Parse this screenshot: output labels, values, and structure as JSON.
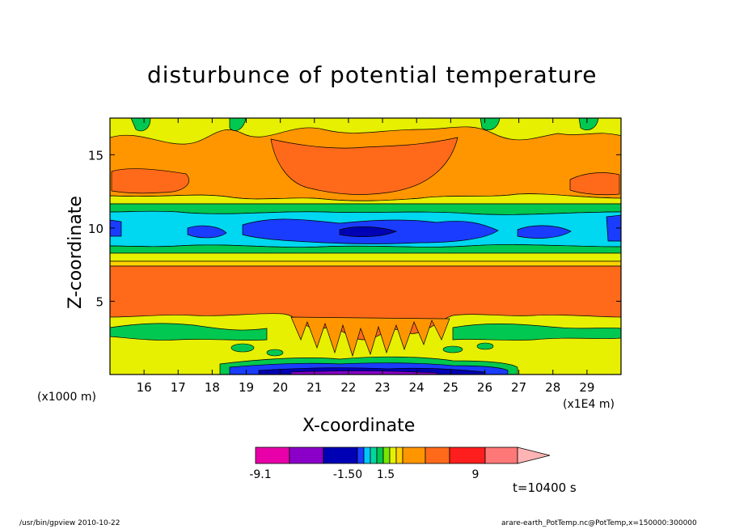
{
  "chart_data": {
    "type": "heatmap",
    "title": "disturbunce of potential temperature",
    "xlabel": "X-coordinate",
    "ylabel": "Z-coordinate",
    "x_unit_label": "(x1E4 m)",
    "y_unit_label": "(x1000 m)",
    "xlim": [
      15,
      30
    ],
    "ylim": [
      0,
      17.5
    ],
    "x_ticks": [
      "16",
      "17",
      "18",
      "19",
      "20",
      "21",
      "22",
      "23",
      "24",
      "25",
      "26",
      "27",
      "28",
      "29"
    ],
    "y_ticks": [
      "5",
      "10",
      "15"
    ],
    "time_label": "t=10400 s",
    "colorbar": {
      "tick_labels": [
        "-9.1",
        "-1.50",
        "1.5",
        "9"
      ],
      "colors": [
        "#e800a8",
        "#8a00c8",
        "#0000b4",
        "#1a3cff",
        "#00c8ff",
        "#00d7a0",
        "#00c850",
        "#78e600",
        "#e6f000",
        "#ffd200",
        "#ff9600",
        "#ff6a1a",
        "#ff1e1e",
        "#ff7878",
        "#ffb4b4"
      ]
    },
    "bands": [
      {
        "z": [
          0.0,
          0.4
        ],
        "value": -8,
        "note": "bottom dark blue/purple strip x 18.8-26.8"
      },
      {
        "z": [
          0.4,
          2.5
        ],
        "value": 1,
        "note": "yellow with green patches"
      },
      {
        "z": [
          2.5,
          4.5
        ],
        "value": 1.5,
        "note": "green bands at sides, orange spikes center"
      },
      {
        "z": [
          4.5,
          8.5
        ],
        "value": 5,
        "note": "wide orange layer"
      },
      {
        "z": [
          8.5,
          9.5
        ],
        "value": 1.5,
        "note": "yellow/green transition"
      },
      {
        "z": [
          9.5,
          10.7
        ],
        "value": -5,
        "note": "blue core, cyan around"
      },
      {
        "z": [
          10.7,
          12
        ],
        "value": 1.2,
        "note": "yellow"
      },
      {
        "z": [
          12,
          17.5
        ],
        "value": 4,
        "note": "orange lobes with darker orange center"
      }
    ]
  },
  "footer": {
    "left": "/usr/bin/gpview   2010-10-22",
    "right": "arare-earth_PotTemp.nc@PotTemp,x=150000:300000"
  }
}
